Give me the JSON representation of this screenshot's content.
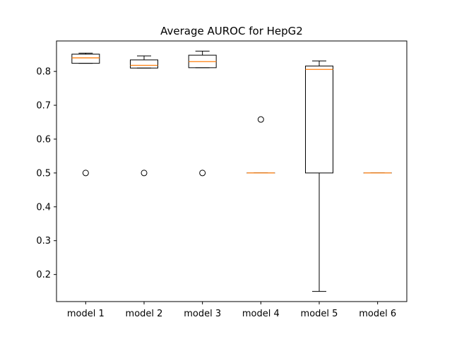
{
  "chart_data": {
    "type": "box",
    "title": "Average AUROC for HepG2",
    "xlabel": "",
    "ylabel": "",
    "categories": [
      "model 1",
      "model 2",
      "model 3",
      "model 4",
      "model 5",
      "model 6"
    ],
    "yticks": [
      "0.2",
      "0.3",
      "0.4",
      "0.5",
      "0.6",
      "0.7",
      "0.8"
    ],
    "ylim": [
      0.12,
      0.89
    ],
    "grid": false,
    "boxes": [
      {
        "whisker_low": 0.824,
        "q1": 0.824,
        "median": 0.84,
        "q3": 0.851,
        "whisker_high": 0.854,
        "outliers": [
          0.5
        ]
      },
      {
        "whisker_low": 0.81,
        "q1": 0.81,
        "median": 0.818,
        "q3": 0.834,
        "whisker_high": 0.846,
        "outliers": [
          0.5
        ]
      },
      {
        "whisker_low": 0.811,
        "q1": 0.811,
        "median": 0.829,
        "q3": 0.848,
        "whisker_high": 0.86,
        "outliers": [
          0.5
        ]
      },
      {
        "whisker_low": 0.5,
        "q1": 0.5,
        "median": 0.5,
        "q3": 0.5,
        "whisker_high": 0.5,
        "outliers": [
          0.658
        ]
      },
      {
        "whisker_low": 0.15,
        "q1": 0.5,
        "median": 0.806,
        "q3": 0.816,
        "whisker_high": 0.831,
        "outliers": []
      },
      {
        "whisker_low": 0.5,
        "q1": 0.5,
        "median": 0.5,
        "q3": 0.5,
        "whisker_high": 0.5,
        "outliers": []
      }
    ],
    "colors": {
      "box": "#000000",
      "median": "#ff7f0e",
      "outlier": "#000000"
    }
  }
}
